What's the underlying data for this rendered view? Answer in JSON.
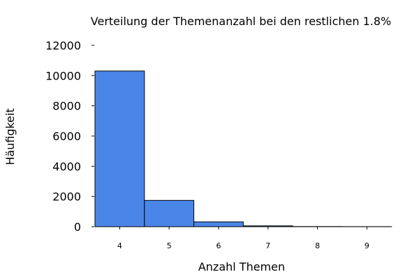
{
  "chart_data": {
    "type": "bar",
    "title": "Verteilung der Themenanzahl bei den restlichen 1.8%",
    "xlabel": "Anzahl Themen",
    "ylabel": "Häufigkeit",
    "categories": [
      "4",
      "5",
      "6",
      "7",
      "8",
      "9"
    ],
    "values": [
      10300,
      1740,
      320,
      55,
      10,
      5
    ],
    "ylim": [
      0,
      12000
    ],
    "yticks": [
      "0",
      "2000",
      "4000",
      "6000",
      "8000",
      "10000",
      "12000"
    ],
    "grid": false,
    "bar_color": "#4a86e8",
    "bar_edge_color": "#000000"
  }
}
